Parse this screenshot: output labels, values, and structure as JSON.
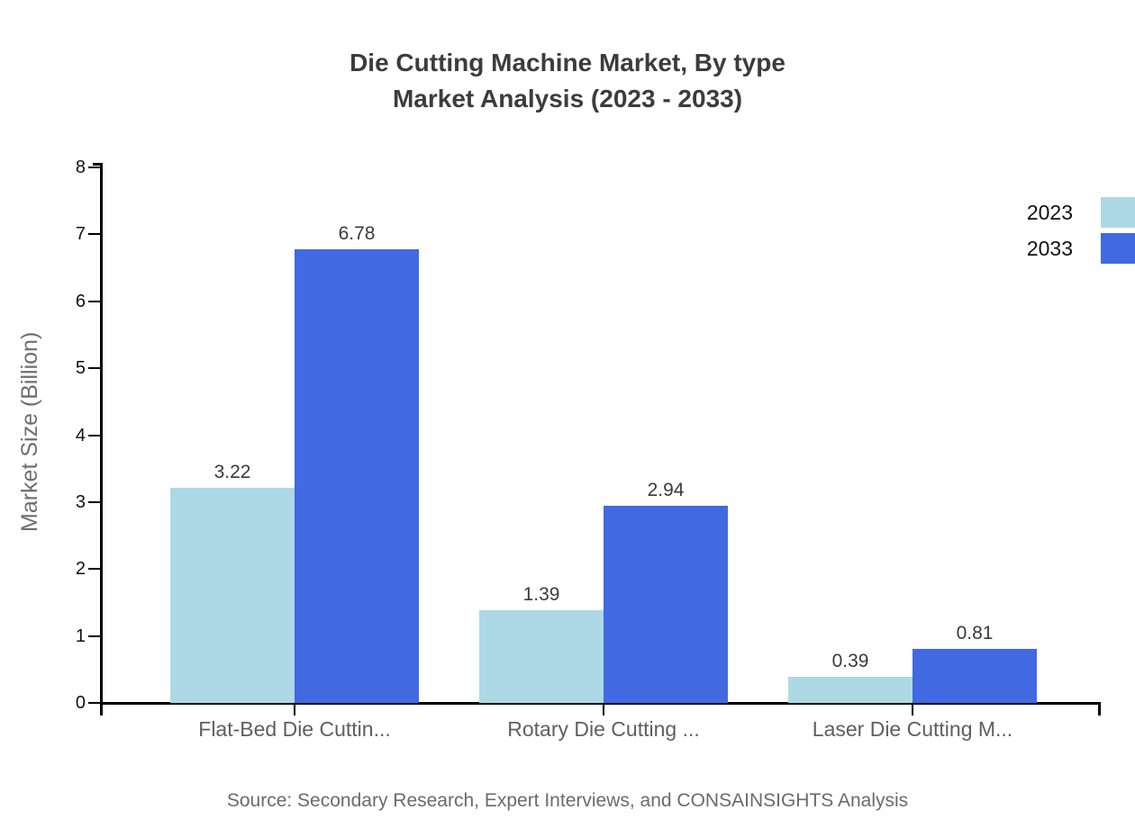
{
  "title": {
    "line1": "Die Cutting Machine Market, By type",
    "line2": "Market Analysis (2023 - 2033)"
  },
  "source": "Source: Secondary Research, Expert Interviews, and CONSAINSIGHTS Analysis",
  "colors": {
    "series_2023": "#ADD8E6",
    "series_2033": "#4169E1",
    "axis": "#000000",
    "title_text": "#3c3c3c",
    "muted_text": "#6b6b6b"
  },
  "chart_data": {
    "type": "bar",
    "title": "Die Cutting Machine Market, By type — Market Analysis (2023 - 2033)",
    "categories": [
      "Flat-Bed Die Cuttin...",
      "Rotary Die Cutting ...",
      "Laser Die Cutting M..."
    ],
    "series": [
      {
        "name": "2023",
        "color": "#ADD8E6",
        "values": [
          3.22,
          1.39,
          0.39
        ]
      },
      {
        "name": "2033",
        "color": "#4169E1",
        "values": [
          6.78,
          2.94,
          0.81
        ]
      }
    ],
    "xlabel": "",
    "ylabel": "Market Size (Billion)",
    "ylim": [
      0,
      8
    ],
    "yticks": [
      0,
      1,
      2,
      3,
      4,
      5,
      6,
      7,
      8
    ],
    "grid": false,
    "legend_position": "top-right",
    "value_labels": true
  }
}
